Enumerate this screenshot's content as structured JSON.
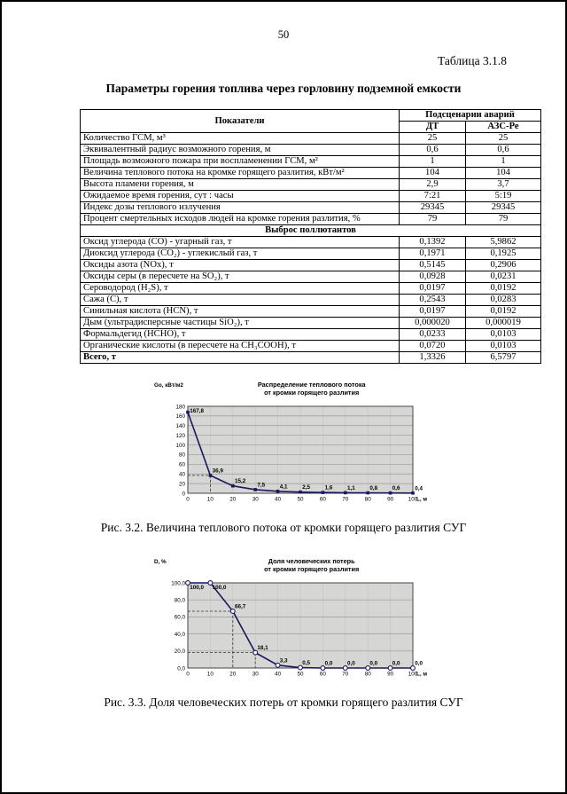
{
  "page": {
    "number": "50",
    "table_label": "Таблица 3.1.8",
    "title": "Параметры горения топлива через горловину подземной емкости"
  },
  "table": {
    "col_header": "Показатели",
    "group_header": "Подсценарии аварий",
    "sub_headers": [
      "ДТ",
      "АЗС-Ре"
    ],
    "rows_top": [
      {
        "label": "Количество ГСМ, м³",
        "dt": "25",
        "azs": "25"
      },
      {
        "label": "Эквивалентный радиус возможного горения, м",
        "dt": "0,6",
        "azs": "0,6"
      },
      {
        "label": "Площадь возможного пожара при воспламенении ГСМ, м²",
        "dt": "1",
        "azs": "1"
      },
      {
        "label": "Величина теплового потока на кромке горящего разлития, кВт/м²",
        "dt": "104",
        "azs": "104"
      },
      {
        "label": "Высота пламени горения, м",
        "dt": "2,9",
        "azs": "3,7"
      },
      {
        "label": "Ожидаемое время горения, сут : часы",
        "dt": "7:21",
        "azs": "5:19"
      },
      {
        "label": "Индекс дозы теплового излучения",
        "dt": "29345",
        "azs": "29345"
      },
      {
        "label": "Процент смертельных исходов людей на кромке горения разлития, %",
        "dt": "79",
        "azs": "79"
      }
    ],
    "section_header": "Выброс поллютантов",
    "rows_pollutants": [
      {
        "label": "Оксид углерода (CO) - угарный газ, т",
        "dt": "0,1392",
        "azs": "5,9862"
      },
      {
        "label": "Диоксид углерода (CO₂) - углекислый газ, т",
        "dt": "0,1971",
        "azs": "0,1925"
      },
      {
        "label": "Оксиды азота (NOx), т",
        "dt": "0,5145",
        "azs": "0,2906"
      },
      {
        "label": "Оксиды серы (в пересчете на SO₂), т",
        "dt": "0,0928",
        "azs": "0,0231"
      },
      {
        "label": "Сероводород (H₂S), т",
        "dt": "0,0197",
        "azs": "0,0192"
      },
      {
        "label": "Сажа (C), т",
        "dt": "0,2543",
        "azs": "0,0283"
      },
      {
        "label": "Синильная кислота (HCN), т",
        "dt": "0,0197",
        "azs": "0,0192"
      },
      {
        "label": "Дым (ультрадисперсные частицы SiO₂), т",
        "dt": "0,000020",
        "azs": "0,000019"
      },
      {
        "label": "Формальдегид (HCHO), т",
        "dt": "0,0233",
        "azs": "0,0103"
      },
      {
        "label": "Органические кислоты (в пересчете на CH₃COOH), т",
        "dt": "0,0720",
        "azs": "0,0103"
      }
    ],
    "total_row": {
      "label": "Всего, т",
      "dt": "1,3326",
      "azs": "6,5797"
    }
  },
  "figures": [
    {
      "caption": "Рис. 3.2. Величина теплового потока от кромки горящего разлития СУГ"
    },
    {
      "caption": "Рис. 3.3. Доля человеческих потерь от кромки горящего разлития СУГ"
    }
  ],
  "chart_data": [
    {
      "type": "line",
      "title_lines": [
        "Распределение теплового потока",
        "от кромки горящего разлития"
      ],
      "ylabel": "Gо, кВт/м2",
      "xlabel": "L, м",
      "x": [
        0,
        10,
        20,
        30,
        40,
        50,
        60,
        70,
        80,
        90,
        100
      ],
      "values": [
        167.8,
        36.9,
        15.2,
        7.5,
        4.1,
        2.5,
        1.6,
        1.1,
        0.8,
        0.6,
        0.4
      ],
      "labels": [
        "167,8",
        "36,9",
        "15,2",
        "7,5",
        "4,1",
        "2,5",
        "1,6",
        "1,1",
        "0,8",
        "0,6",
        "0,4"
      ],
      "ylim": [
        0,
        180
      ],
      "yticks": [
        "0",
        "20",
        "40",
        "60",
        "80",
        "100",
        "120",
        "140",
        "160",
        "180"
      ],
      "marker": "square",
      "ref_indices": [
        1
      ],
      "grid": true,
      "legend": "none",
      "line_color": "#18185e",
      "plot_bg": "#d6d6d4"
    },
    {
      "type": "line",
      "title_lines": [
        "Доля человеческих потерь",
        "от кромки горящего разлития"
      ],
      "ylabel": "D, %",
      "xlabel": "L, м",
      "x": [
        0,
        10,
        20,
        30,
        40,
        50,
        60,
        70,
        80,
        90,
        100
      ],
      "values": [
        100.0,
        100.0,
        66.7,
        18.1,
        3.3,
        0.5,
        0.0,
        0.0,
        0.0,
        0.0,
        0.0
      ],
      "labels": [
        "100,0",
        "100,0",
        "66,7",
        "18,1",
        "3,3",
        "0,5",
        "0,0",
        "0,0",
        "0,0",
        "0,0",
        "0,0"
      ],
      "ylim": [
        0,
        100
      ],
      "yticks": [
        "0,0",
        "20,0",
        "40,0",
        "60,0",
        "80,0",
        "100,0"
      ],
      "marker": "circle",
      "ref_indices": [
        2,
        3
      ],
      "grid": true,
      "legend": "none",
      "line_color": "#18185e",
      "plot_bg": "#d6d6d4"
    }
  ]
}
